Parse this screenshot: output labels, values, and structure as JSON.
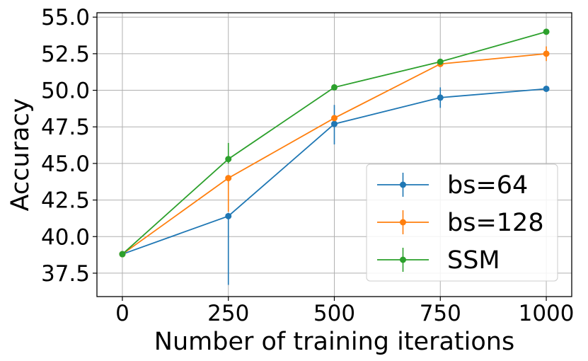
{
  "chart_data": {
    "type": "line",
    "title": "",
    "xlabel": "Number of training iterations",
    "ylabel": "Accuracy",
    "x": [
      0,
      250,
      500,
      750,
      1000
    ],
    "xticks": [
      "0",
      "250",
      "500",
      "750",
      "1000"
    ],
    "yticks": [
      "37.5",
      "40.0",
      "42.5",
      "45.0",
      "47.5",
      "50.0",
      "52.5",
      "55.0"
    ],
    "xlim": [
      -60,
      1060
    ],
    "ylim": [
      35.9,
      55.3
    ],
    "grid": true,
    "legend_position": "lower-right",
    "series": [
      {
        "name": "bs=64",
        "color": "#1f77b4",
        "values": [
          38.8,
          41.4,
          47.7,
          49.5,
          50.1
        ],
        "err_low": [
          38.8,
          36.7,
          46.3,
          48.8,
          50.1
        ],
        "err_high": [
          38.8,
          41.4,
          49.0,
          50.2,
          50.1
        ]
      },
      {
        "name": "bs=128",
        "color": "#ff7f0e",
        "values": [
          38.8,
          44.0,
          48.1,
          51.8,
          52.5
        ],
        "err_low": [
          38.8,
          41.7,
          47.9,
          51.6,
          52.0
        ],
        "err_high": [
          38.8,
          44.0,
          48.3,
          52.1,
          53.0
        ]
      },
      {
        "name": "SSM",
        "color": "#2ca02c",
        "values": [
          38.8,
          45.3,
          50.2,
          51.95,
          54.0
        ],
        "err_low": [
          38.8,
          45.0,
          50.1,
          51.8,
          53.9
        ],
        "err_high": [
          38.8,
          46.4,
          50.3,
          52.1,
          54.1
        ]
      }
    ]
  }
}
